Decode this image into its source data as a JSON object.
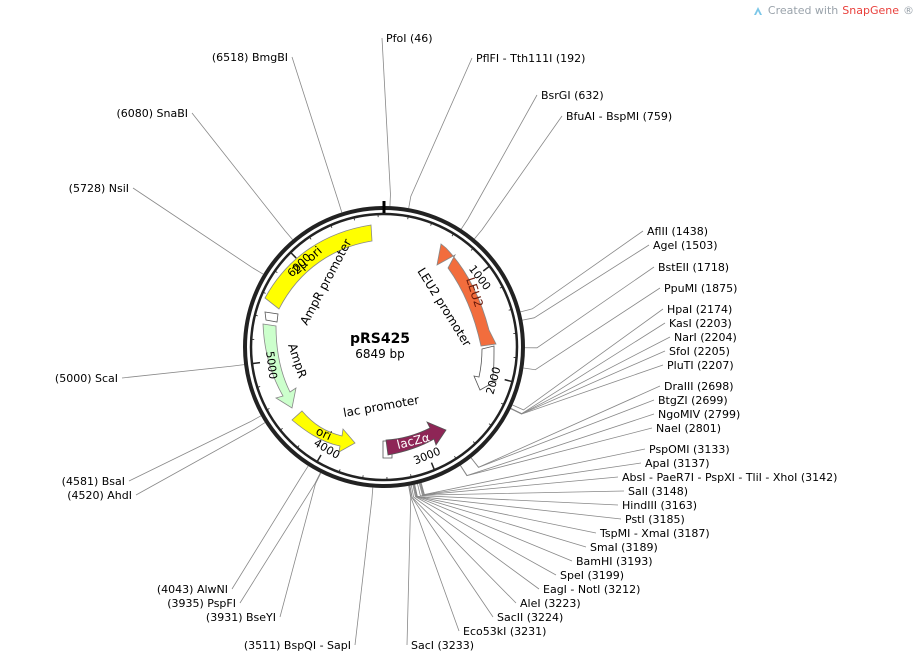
{
  "credit": {
    "prefix": "Created with ",
    "brand": "SnapGene",
    "mark": "®"
  },
  "plasmid": {
    "name": "pRS425",
    "size_label": "6849 bp",
    "length": 6849
  },
  "ticks": [
    "1000",
    "2000",
    "3000",
    "4000",
    "5000",
    "6000"
  ],
  "features": [
    {
      "name": "LEU2",
      "color": "#f26d3d"
    },
    {
      "name": "LEU2 promoter",
      "color": "#ffffff"
    },
    {
      "name": "lacZα",
      "color": "#8e2556"
    },
    {
      "name": "lac promoter",
      "color": "#ffffff"
    },
    {
      "name": "ori",
      "color": "#ffff00"
    },
    {
      "name": "AmpR",
      "color": "#ccffcc"
    },
    {
      "name": "AmpR promoter",
      "color": "#ffffff"
    },
    {
      "name": "2μ ori",
      "color": "#ffff00"
    }
  ],
  "sites": [
    {
      "text": "PfoI  (46)",
      "pos": 46
    },
    {
      "text": "PflFI - Tth111I  (192)",
      "pos": 192
    },
    {
      "text": "BsrGI  (632)",
      "pos": 632
    },
    {
      "text": "BfuAI - BspMI  (759)",
      "pos": 759
    },
    {
      "text": "AflII  (1438)",
      "pos": 1438
    },
    {
      "text": "AgeI  (1503)",
      "pos": 1503
    },
    {
      "text": "BstEII  (1718)",
      "pos": 1718
    },
    {
      "text": "PpuMI  (1875)",
      "pos": 1875
    },
    {
      "text": "HpaI  (2174)",
      "pos": 2174
    },
    {
      "text": "KasI  (2203)",
      "pos": 2203
    },
    {
      "text": "NarI  (2204)",
      "pos": 2204
    },
    {
      "text": "SfoI  (2205)",
      "pos": 2205
    },
    {
      "text": "PluTI  (2207)",
      "pos": 2207
    },
    {
      "text": "DraIII  (2698)",
      "pos": 2698
    },
    {
      "text": "BtgZI  (2699)",
      "pos": 2699
    },
    {
      "text": "NgoMIV  (2799)",
      "pos": 2799
    },
    {
      "text": "NaeI  (2801)",
      "pos": 2801
    },
    {
      "text": "PspOMI  (3133)",
      "pos": 3133
    },
    {
      "text": "ApaI  (3137)",
      "pos": 3137
    },
    {
      "text": "AbsI - PaeR7I - PspXI - TliI - XhoI  (3142)",
      "pos": 3142
    },
    {
      "text": "SalI  (3148)",
      "pos": 3148
    },
    {
      "text": "HindIII  (3163)",
      "pos": 3163
    },
    {
      "text": "PstI  (3185)",
      "pos": 3185
    },
    {
      "text": "TspMI - XmaI  (3187)",
      "pos": 3187
    },
    {
      "text": "SmaI  (3189)",
      "pos": 3189
    },
    {
      "text": "BamHI  (3193)",
      "pos": 3193
    },
    {
      "text": "SpeI  (3199)",
      "pos": 3199
    },
    {
      "text": "EagI - NotI  (3212)",
      "pos": 3212
    },
    {
      "text": "AleI  (3223)",
      "pos": 3223
    },
    {
      "text": "SacII  (3224)",
      "pos": 3224
    },
    {
      "text": "Eco53kI  (3231)",
      "pos": 3231
    },
    {
      "text": "SacI  (3233)",
      "pos": 3233
    },
    {
      "text": "(3511)  BspQI - SapI",
      "pos": 3511
    },
    {
      "text": "(3931)  BseYI",
      "pos": 3931
    },
    {
      "text": "(3935)  PspFI",
      "pos": 3935
    },
    {
      "text": "(4043)  AlwNI",
      "pos": 4043
    },
    {
      "text": "(4520)  AhdI",
      "pos": 4520
    },
    {
      "text": "(4581)  BsaI",
      "pos": 4581
    },
    {
      "text": "(5000)  ScaI",
      "pos": 5000
    },
    {
      "text": "(5728)  NsiI",
      "pos": 5728
    },
    {
      "text": "(6080)  SnaBI",
      "pos": 6080
    },
    {
      "text": "(6518)  BmgBI",
      "pos": 6518
    }
  ]
}
